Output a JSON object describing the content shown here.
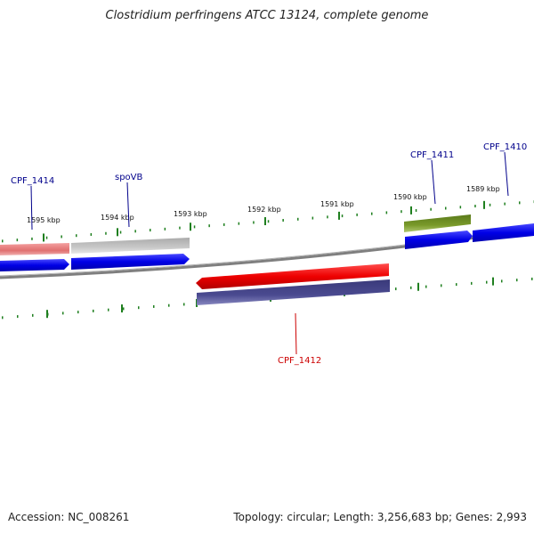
{
  "title": "Clostridium perfringens ATCC 13124, complete genome",
  "footer": {
    "accession": "Accession: NC_008261",
    "summary": "Topology: circular; Length: 3,256,683 bp; Genes: 2,993"
  },
  "colors": {
    "backbone": "#7f7f7f",
    "tick": "#1f7f1f",
    "label_forward": "#00008b",
    "label_reverse": "#cc0000"
  },
  "ticks": [
    {
      "label": "1595 kbp"
    },
    {
      "label": "1594 kbp"
    },
    {
      "label": "1593 kbp"
    },
    {
      "label": "1592 kbp"
    },
    {
      "label": "1591 kbp"
    },
    {
      "label": "1590 kbp"
    },
    {
      "label": "1589 kbp"
    }
  ],
  "genes": [
    {
      "name": "CPF_1414",
      "label_color": "#00008b"
    },
    {
      "name": "spoVB",
      "label_color": "#00008b"
    },
    {
      "name": "CPF_1411",
      "label_color": "#00008b"
    },
    {
      "name": "CPF_1410",
      "label_color": "#00008b"
    },
    {
      "name": "CPF_1412",
      "label_color": "#cc0000"
    }
  ]
}
